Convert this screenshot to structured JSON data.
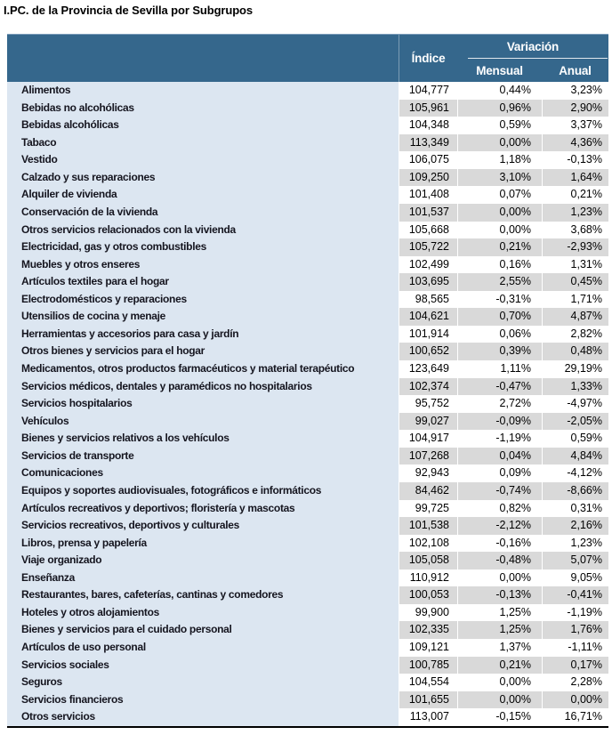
{
  "title": "I.PC. de la Provincia de Sevilla por Subgrupos",
  "colors": {
    "header_bg": "#35678C",
    "label_column_bg": "#DCE6F1",
    "stripe_gray": "#D9D9D9",
    "stripe_white": "#FFFFFF",
    "header_text": "#FFFFFF",
    "bottom_border": "#000000"
  },
  "table": {
    "columns": {
      "indice": "Índice",
      "variacion": "Variación",
      "mensual": "Mensual",
      "anual": "Anual"
    },
    "rows": [
      {
        "label": "Alimentos",
        "indice": "104,777",
        "mensual": "0,44%",
        "anual": "3,23%"
      },
      {
        "label": "Bebidas no alcohólicas",
        "indice": "105,961",
        "mensual": "0,96%",
        "anual": "2,90%"
      },
      {
        "label": "Bebidas alcohólicas",
        "indice": "104,348",
        "mensual": "0,59%",
        "anual": "3,37%"
      },
      {
        "label": "Tabaco",
        "indice": "113,349",
        "mensual": "0,00%",
        "anual": "4,36%"
      },
      {
        "label": "Vestido",
        "indice": "106,075",
        "mensual": "1,18%",
        "anual": "-0,13%"
      },
      {
        "label": "Calzado y sus reparaciones",
        "indice": "109,250",
        "mensual": "3,10%",
        "anual": "1,64%"
      },
      {
        "label": "Alquiler de vivienda",
        "indice": "101,408",
        "mensual": "0,07%",
        "anual": "0,21%"
      },
      {
        "label": "Conservación de la vivienda",
        "indice": "101,537",
        "mensual": "0,00%",
        "anual": "1,23%"
      },
      {
        "label": "Otros servicios relacionados con la vivienda",
        "indice": "105,668",
        "mensual": "0,00%",
        "anual": "3,68%"
      },
      {
        "label": "Electricidad, gas y otros combustibles",
        "indice": "105,722",
        "mensual": "0,21%",
        "anual": "-2,93%"
      },
      {
        "label": "Muebles y otros enseres",
        "indice": "102,499",
        "mensual": "0,16%",
        "anual": "1,31%"
      },
      {
        "label": "Artículos textiles para el hogar",
        "indice": "103,695",
        "mensual": "2,55%",
        "anual": "0,45%"
      },
      {
        "label": "Electrodomésticos y reparaciones",
        "indice": "98,565",
        "mensual": "-0,31%",
        "anual": "1,71%"
      },
      {
        "label": "Utensilios de cocina y menaje",
        "indice": "104,621",
        "mensual": "0,70%",
        "anual": "4,87%"
      },
      {
        "label": "Herramientas y accesorios para casa y jardín",
        "indice": "101,914",
        "mensual": "0,06%",
        "anual": "2,82%"
      },
      {
        "label": "Otros bienes y servicios para el hogar",
        "indice": "100,652",
        "mensual": "0,39%",
        "anual": "0,48%"
      },
      {
        "label": "Medicamentos, otros productos farmacéuticos y material terapéutico",
        "indice": "123,649",
        "mensual": "1,11%",
        "anual": "29,19%"
      },
      {
        "label": "Servicios médicos, dentales y paramédicos no hospitalarios",
        "indice": "102,374",
        "mensual": "-0,47%",
        "anual": "1,33%"
      },
      {
        "label": "Servicios hospitalarios",
        "indice": "95,752",
        "mensual": "2,72%",
        "anual": "-4,97%"
      },
      {
        "label": "Vehículos",
        "indice": "99,027",
        "mensual": "-0,09%",
        "anual": "-2,05%"
      },
      {
        "label": "Bienes y servicios relativos a los vehículos",
        "indice": "104,917",
        "mensual": "-1,19%",
        "anual": "0,59%"
      },
      {
        "label": "Servicios de transporte",
        "indice": "107,268",
        "mensual": "0,04%",
        "anual": "4,84%"
      },
      {
        "label": "Comunicaciones",
        "indice": "92,943",
        "mensual": "0,09%",
        "anual": "-4,12%"
      },
      {
        "label": "Equipos y soportes audiovisuales, fotográficos e informáticos",
        "indice": "84,462",
        "mensual": "-0,74%",
        "anual": "-8,66%"
      },
      {
        "label": "Artículos recreativos y deportivos; floristería y mascotas",
        "indice": "99,725",
        "mensual": "0,82%",
        "anual": "0,31%"
      },
      {
        "label": "Servicios recreativos, deportivos y culturales",
        "indice": "101,538",
        "mensual": "-2,12%",
        "anual": "2,16%"
      },
      {
        "label": "Libros, prensa y papelería",
        "indice": "102,108",
        "mensual": "-0,16%",
        "anual": "1,23%"
      },
      {
        "label": "Viaje organizado",
        "indice": "105,058",
        "mensual": "-0,48%",
        "anual": "5,07%"
      },
      {
        "label": "Enseñanza",
        "indice": "110,912",
        "mensual": "0,00%",
        "anual": "9,05%"
      },
      {
        "label": "Restaurantes, bares, cafeterías, cantinas y comedores",
        "indice": "100,053",
        "mensual": "-0,13%",
        "anual": "-0,41%"
      },
      {
        "label": "Hoteles y otros alojamientos",
        "indice": "99,900",
        "mensual": "1,25%",
        "anual": "-1,19%"
      },
      {
        "label": "Bienes y servicios para el cuidado personal",
        "indice": "102,335",
        "mensual": "1,25%",
        "anual": "1,76%"
      },
      {
        "label": "Artículos de uso personal",
        "indice": "109,121",
        "mensual": "1,37%",
        "anual": "-1,11%"
      },
      {
        "label": "Servicios sociales",
        "indice": "100,785",
        "mensual": "0,21%",
        "anual": "0,17%"
      },
      {
        "label": "Seguros",
        "indice": "104,554",
        "mensual": "0,00%",
        "anual": "2,28%"
      },
      {
        "label": "Servicios financieros",
        "indice": "101,655",
        "mensual": "0,00%",
        "anual": "0,00%"
      },
      {
        "label": "Otros servicios",
        "indice": "113,007",
        "mensual": "-0,15%",
        "anual": "16,71%"
      }
    ]
  }
}
